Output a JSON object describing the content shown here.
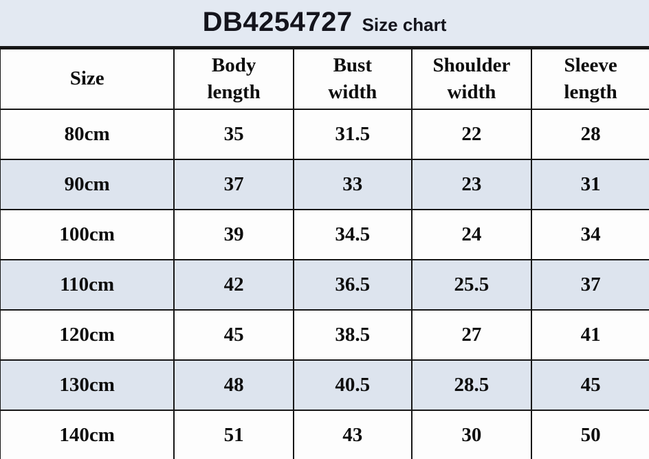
{
  "title": {
    "code": "DB4254727",
    "label": "Size chart"
  },
  "colors": {
    "title_band_bg": "#e3e9f2",
    "stripe_bg": "#dde4ee",
    "border": "#161616",
    "title_text": "#14141c"
  },
  "chart_data": {
    "type": "table",
    "title": "DB4254727 Size chart",
    "columns": [
      "Size",
      "Body length",
      "Bust width",
      "Shoulder width",
      "Sleeve length"
    ],
    "rows": [
      [
        "80cm",
        35,
        31.5,
        22,
        28
      ],
      [
        "90cm",
        37,
        33,
        23,
        31
      ],
      [
        "100cm",
        39,
        34.5,
        24,
        34
      ],
      [
        "110cm",
        42,
        36.5,
        25.5,
        37
      ],
      [
        "120cm",
        45,
        38.5,
        27,
        41
      ],
      [
        "130cm",
        48,
        40.5,
        28.5,
        45
      ],
      [
        "140cm",
        51,
        43,
        30,
        50
      ]
    ],
    "layout_hints": {
      "striped_rows": "even data rows shaded light blue",
      "grid": "black 2px borders, table cropped at right and bottom edges"
    }
  },
  "table": {
    "headers": {
      "size": "Size",
      "body_length": "Body\nlength",
      "bust_width": "Bust\nwidth",
      "shoulder_width": "Shoulder\nwidth",
      "sleeve_length": "Sleeve\nlength"
    },
    "rows": [
      {
        "size": "80cm",
        "values": [
          "35",
          "31.5",
          "22",
          "28"
        ]
      },
      {
        "size": "90cm",
        "values": [
          "37",
          "33",
          "23",
          "31"
        ]
      },
      {
        "size": "100cm",
        "values": [
          "39",
          "34.5",
          "24",
          "34"
        ]
      },
      {
        "size": "110cm",
        "values": [
          "42",
          "36.5",
          "25.5",
          "37"
        ]
      },
      {
        "size": "120cm",
        "values": [
          "45",
          "38.5",
          "27",
          "41"
        ]
      },
      {
        "size": "130cm",
        "values": [
          "48",
          "40.5",
          "28.5",
          "45"
        ]
      },
      {
        "size": "140cm",
        "values": [
          "51",
          "43",
          "30",
          "50"
        ]
      }
    ]
  }
}
